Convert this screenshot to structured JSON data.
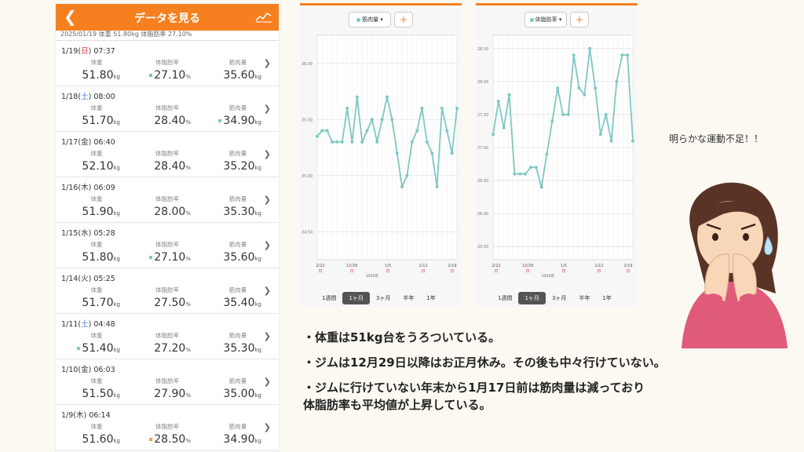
{
  "app": {
    "title": "データを見る",
    "back_icon": "chevron-left-icon",
    "graph_icon": "line-graph-icon",
    "summary": "2025/01/19  体重 51.80kg  体脂肪率 27.10%"
  },
  "labels": {
    "weight": "体重",
    "fat": "体脂肪率",
    "muscle": "筋肉量"
  },
  "units": {
    "kg": "kg",
    "pct": "%"
  },
  "entries": [
    {
      "date": "1/19",
      "dow": "日",
      "time": "07:37",
      "weight": "51.80",
      "fat": "27.10",
      "muscle": "35.60",
      "fat_mark": "#7ec8c3"
    },
    {
      "date": "1/18",
      "dow": "土",
      "time": "08:00",
      "weight": "51.70",
      "fat": "28.40",
      "muscle": "34.90",
      "muscle_mark": "#7ec8c3"
    },
    {
      "date": "1/17",
      "dow": "金",
      "time": "06:40",
      "weight": "52.10",
      "fat": "28.40",
      "muscle": "35.20"
    },
    {
      "date": "1/16",
      "dow": "木",
      "time": "06:09",
      "weight": "51.90",
      "fat": "28.00",
      "muscle": "35.30"
    },
    {
      "date": "1/15",
      "dow": "水",
      "time": "05:28",
      "weight": "51.80",
      "fat": "27.10",
      "muscle": "35.60",
      "fat_mark": "#7ec8c3"
    },
    {
      "date": "1/14",
      "dow": "火",
      "time": "05:25",
      "weight": "51.70",
      "fat": "27.50",
      "muscle": "35.40"
    },
    {
      "date": "1/11",
      "dow": "土",
      "time": "04:48",
      "weight": "51.40",
      "fat": "27.20",
      "muscle": "35.30",
      "weight_mark": "#7ec8c3"
    },
    {
      "date": "1/10",
      "dow": "金",
      "time": "06:03",
      "weight": "51.50",
      "fat": "27.90",
      "muscle": "35.00"
    },
    {
      "date": "1/9",
      "dow": "木",
      "time": "06:14",
      "weight": "51.60",
      "fat": "28.50",
      "muscle": "34.90",
      "fat_mark": "#f6a03c"
    }
  ],
  "charts": {
    "muscle": {
      "selector": "筋肉量",
      "plus": "+"
    },
    "fat": {
      "selector": "体脂肪率",
      "plus": "+"
    },
    "tabs": [
      "1週間",
      "1ヶ月",
      "3ヶ月",
      "半年",
      "1年"
    ],
    "active_tab": 1,
    "x_ticks": [
      {
        "label": "2/22",
        "sub": "日"
      },
      {
        "label": "12/29",
        "sub": "日"
      },
      {
        "label": "1/5",
        "sub": "日"
      },
      {
        "label": "1/12",
        "sub": "日"
      },
      {
        "label": "1/19",
        "sub": "日"
      }
    ],
    "year_label": "2025年"
  },
  "chart_data": [
    {
      "type": "line",
      "title": "筋肉量",
      "ylim": [
        34.25,
        36.25
      ],
      "yticks": [
        34.5,
        35.0,
        35.5,
        36.0
      ],
      "ytick_labels": [
        "34.50",
        "35.00",
        "35.50",
        "36.00"
      ],
      "x": [
        0,
        1,
        2,
        3,
        4,
        5,
        6,
        7,
        8,
        9,
        10,
        11,
        12,
        13,
        14,
        15,
        16,
        17,
        18,
        19,
        20,
        21,
        22,
        23,
        24,
        25,
        26,
        27,
        28
      ],
      "values": [
        35.35,
        35.4,
        35.4,
        35.3,
        35.3,
        35.3,
        35.6,
        35.3,
        35.7,
        35.3,
        35.4,
        35.5,
        35.3,
        35.5,
        35.7,
        35.5,
        35.2,
        34.9,
        35.0,
        35.3,
        35.4,
        35.6,
        35.3,
        35.2,
        34.9,
        35.6,
        35.4,
        35.2,
        35.6
      ],
      "color": "#7ec8c3"
    },
    {
      "type": "line",
      "title": "体脂肪率",
      "ylim": [
        25.3,
        28.7
      ],
      "yticks": [
        25.5,
        26.0,
        26.5,
        27.0,
        27.5,
        28.0,
        28.5
      ],
      "ytick_labels": [
        "25.50",
        "26.00",
        "26.50",
        "27.00",
        "27.50",
        "28.00",
        "28.50"
      ],
      "x": [
        0,
        1,
        2,
        3,
        4,
        5,
        6,
        7,
        8,
        9,
        10,
        11,
        12,
        13,
        14,
        15,
        16,
        17,
        18,
        19,
        20,
        21,
        22,
        23,
        24,
        25,
        26
      ],
      "values": [
        27.2,
        27.7,
        27.3,
        27.8,
        26.6,
        26.6,
        26.6,
        26.7,
        26.7,
        26.4,
        26.9,
        27.4,
        27.9,
        27.5,
        27.5,
        28.4,
        27.9,
        27.8,
        28.5,
        27.9,
        27.2,
        27.5,
        27.1,
        28.0,
        28.4,
        28.4,
        27.1
      ],
      "color": "#7ec8c3"
    }
  ],
  "note": "明らかな運動不足！！",
  "bullets": [
    "・体重は51kg台をうろついている。",
    "・ジムは12月29日以降はお正月休み。その後も中々行けていない。",
    "・ジムに行けていない年末から1月17日前は筋肉量は減っており",
    "体脂肪率も平均値が上昇している。"
  ],
  "illustration": "worried-woman-covering-mouth"
}
